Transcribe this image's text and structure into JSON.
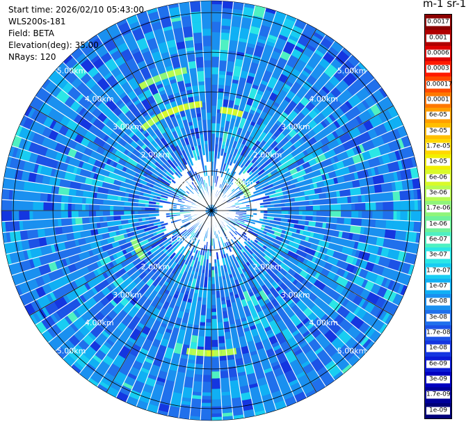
{
  "info": {
    "start_time": "Start time: 2026/02/10 05:43:00",
    "instrument": "WLS200s-181",
    "field": "Field: BETA",
    "elevation": "Elevation(deg): 35.00",
    "nrays": "NRays: 120"
  },
  "colorbar": {
    "title": "m-1 sr-1",
    "labels": [
      "0.0017",
      "0.001",
      "0.0006",
      "0.0003",
      "0.00017",
      "0.0001",
      "6e-05",
      "3e-05",
      "1.7e-05",
      "1e-05",
      "6e-06",
      "3e-06",
      "1.7e-06",
      "1e-06",
      "6e-07",
      "3e-07",
      "1.7e-07",
      "1e-07",
      "6e-08",
      "3e-08",
      "1.7e-08",
      "1e-08",
      "6e-09",
      "3e-09",
      "1.7e-09",
      "1e-09"
    ],
    "colors": [
      "#8b0000",
      "#b00000",
      "#dd0000",
      "#ff1a00",
      "#ff4a00",
      "#ff7800",
      "#ff9e00",
      "#ffbe00",
      "#ffd800",
      "#f2ef00",
      "#d9fa2a",
      "#b7fb52",
      "#8ff57a",
      "#6ef29a",
      "#4ff0c2",
      "#2be6e6",
      "#18cdf2",
      "#10b0f4",
      "#1a90f0",
      "#2070ec",
      "#1c52e6",
      "#1436e0",
      "#0a1ad6",
      "#0000c0",
      "#00009a",
      "#000078"
    ]
  },
  "chart_data": {
    "type": "polar-ppi",
    "field": "BETA",
    "elevation_deg": 35.0,
    "n_rays": 120,
    "range_rings_km": [
      1,
      2,
      3,
      4,
      5
    ],
    "range_labels": [
      "1.00km",
      "2.00km",
      "3.00km",
      "4.00km",
      "5.00km"
    ],
    "max_range_km": 5.3,
    "colorbar_range": [
      1e-09,
      0.0017
    ],
    "colorbar_scale": "log",
    "high_backscatter_arcs": [
      {
        "range_km": 2.7,
        "azimuth_start": 320,
        "azimuth_end": 355,
        "level": 2
      },
      {
        "range_km": 2.55,
        "azimuth_start": 5,
        "azimuth_end": 18,
        "level": 3
      },
      {
        "range_km": 3.6,
        "azimuth_start": 330,
        "azimuth_end": 350,
        "level": 1
      },
      {
        "range_km": 3.6,
        "azimuth_start": 170,
        "azimuth_end": 190,
        "level": 2
      },
      {
        "range_km": 2.1,
        "azimuth_start": 235,
        "azimuth_end": 250,
        "level": 1
      },
      {
        "range_km": 1.0,
        "azimuth_start": 40,
        "azimuth_end": 70,
        "level": 1
      }
    ]
  }
}
